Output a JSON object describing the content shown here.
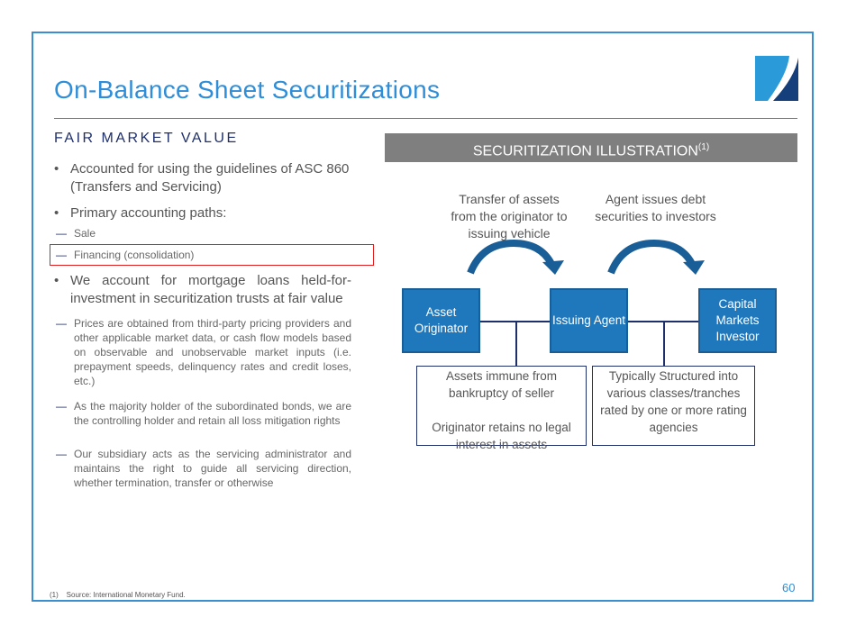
{
  "title": "On-Balance Sheet Securitizations",
  "section_heading": "FAIR MARKET VALUE",
  "bullets": [
    "Accounted for using the guidelines of ASC 860 (Transfers and Servicing)",
    "Primary accounting paths:",
    "We account for mortgage loans held-for-investment in securitization trusts at fair value"
  ],
  "paths": [
    "Sale",
    "Financing (consolidation)"
  ],
  "sub_bullets": [
    "Prices are obtained from third-party pricing providers and other applicable market data, or cash flow models based on observable and unobservable market inputs (i.e. prepayment speeds, delinquency rates and credit loses, etc.)",
    "As the majority holder of the subordinated bonds, we are the controlling holder and retain all loss mitigation rights",
    "Our subsidiary acts as the servicing administrator and maintains the right to guide all servicing direction, whether termination, transfer or otherwise"
  ],
  "illustration": {
    "header": "SECURITIZATION ILLUSTRATION",
    "header_sup": "(1)",
    "caption_left": "Transfer of assets from the originator to issuing vehicle",
    "caption_right": "Agent issues debt securities to investors",
    "nodes": [
      "Asset Originator",
      "Issuing Agent",
      "Capital Markets Investor"
    ],
    "note_left_1": "Assets immune from bankruptcy of seller",
    "note_left_2": "Originator retains no legal interest in assets",
    "note_right": "Typically Structured into various classes/tranches rated by one or more rating agencies"
  },
  "footnote": "(1)    Source: International Monetary Fund.",
  "page_number": "60",
  "colors": {
    "accent": "#2f8ed8",
    "navy": "#1f2f6b",
    "node": "#1f77bc",
    "highlight": "#e02020"
  }
}
